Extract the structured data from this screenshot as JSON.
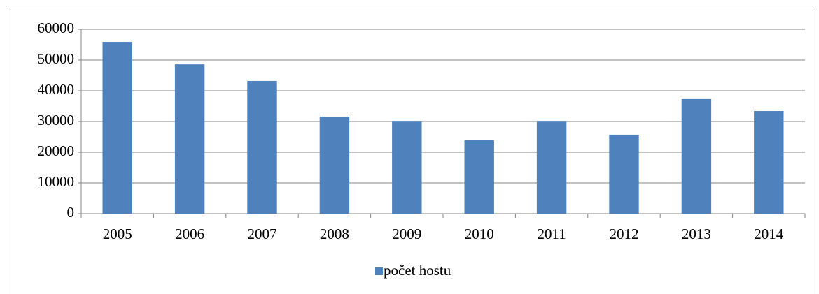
{
  "chart_data": {
    "type": "bar",
    "categories": [
      "2005",
      "2006",
      "2007",
      "2008",
      "2009",
      "2010",
      "2011",
      "2012",
      "2013",
      "2014"
    ],
    "series": [
      {
        "name": "počet hostu",
        "color": "#4f81bd",
        "values": [
          55900,
          48600,
          43200,
          31600,
          30200,
          23900,
          30200,
          25700,
          37300,
          33400
        ]
      }
    ],
    "ylim": [
      0,
      60000
    ],
    "yticks": [
      0,
      10000,
      20000,
      30000,
      40000,
      50000,
      60000
    ],
    "grid": true,
    "legend": "bottom"
  }
}
